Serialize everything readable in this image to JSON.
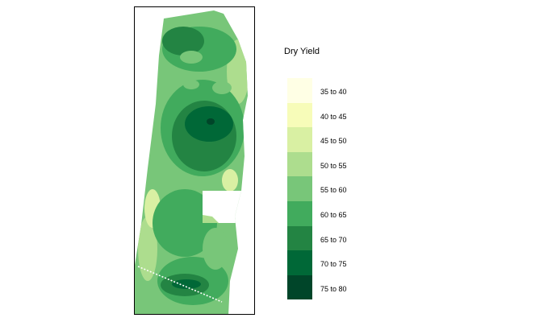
{
  "legend": {
    "title": "Dry Yield",
    "items": [
      {
        "label": "35 to 40",
        "color": "#ffffe5"
      },
      {
        "label": "40 to 45",
        "color": "#f7fcb9"
      },
      {
        "label": "45 to 50",
        "color": "#d9f0a3"
      },
      {
        "label": "50 to 55",
        "color": "#addd8e"
      },
      {
        "label": "55 to 60",
        "color": "#78c679"
      },
      {
        "label": "60 to 65",
        "color": "#41ab5d"
      },
      {
        "label": "65 to 70",
        "color": "#238443"
      },
      {
        "label": "70 to 75",
        "color": "#006837"
      },
      {
        "label": "75 to 80",
        "color": "#004529"
      }
    ]
  }
}
